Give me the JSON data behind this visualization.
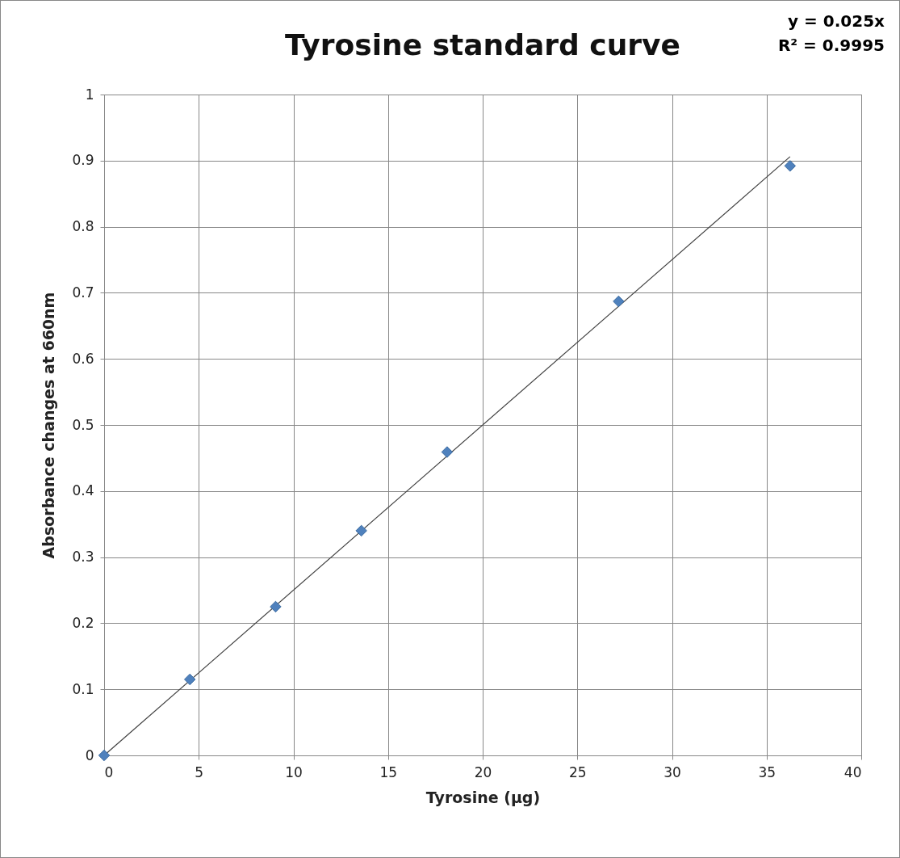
{
  "chart_data": {
    "type": "scatter",
    "title": "Tyrosine standard curve",
    "xlabel": "Tyrosine (µg)",
    "ylabel": "Absorbance changes at 660nm",
    "annotations": [
      "y = 0.025x",
      "R² = 0.9995"
    ],
    "series": [
      {
        "marker": "diamond",
        "color": "#4f81bd",
        "x": [
          0,
          4.53,
          9.06,
          13.59,
          18.12,
          27.18,
          36.24
        ],
        "values": [
          0,
          0.115,
          0.225,
          0.34,
          0.459,
          0.687,
          0.892
        ]
      },
      {
        "type": "line",
        "color": "#404040",
        "x": [
          0,
          36.24
        ],
        "values": [
          0,
          0.906
        ]
      }
    ],
    "xlim": [
      0,
      40
    ],
    "xticks": [
      0,
      5,
      10,
      15,
      20,
      25,
      30,
      35,
      40
    ],
    "ylim": [
      0,
      1
    ],
    "yticks": [
      0,
      0.1,
      0.2,
      0.3,
      0.4,
      0.5,
      0.6,
      0.7,
      0.8,
      0.9,
      1
    ],
    "grid": true
  }
}
